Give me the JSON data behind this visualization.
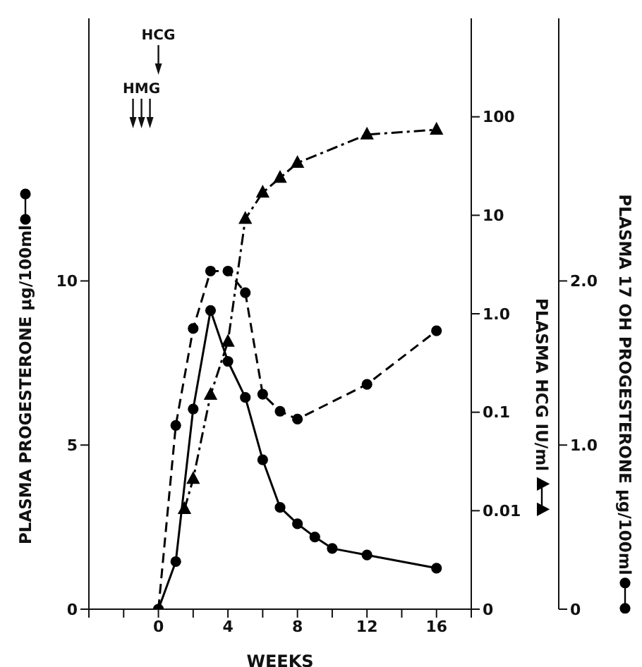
{
  "chart_data": {
    "type": "line",
    "xlabel": "WEEKS",
    "ylabel": "PLASMA PROGESTERONE µg/100ml",
    "y2label": "PLASMA HCG IU/ml",
    "y3label": "PLASMA 17 OH PROGESTERONE µg/100ml",
    "xlim": [
      -4,
      18
    ],
    "xticks": [
      {
        "value": -4,
        "label": null
      },
      {
        "value": -2,
        "label": null
      },
      0,
      {
        "value": 2,
        "label": null
      },
      4,
      {
        "value": 6,
        "label": null
      },
      8,
      {
        "value": 10,
        "label": null
      },
      12,
      {
        "value": 14,
        "label": null
      },
      16,
      {
        "value": 18,
        "label": null
      }
    ],
    "ylim": [
      0,
      18
    ],
    "yticks": [
      0,
      5,
      10
    ],
    "y2lim": [
      0.001,
      1000
    ],
    "y2ticks": [
      {
        "value": 0.001,
        "label": "0"
      },
      0.01,
      0.1,
      {
        "value": 1,
        "label": "1.0"
      },
      10,
      100
    ],
    "log": "y2",
    "y3lim": [
      0,
      3.6
    ],
    "y3ticks": [
      0,
      {
        "value": 1,
        "label": "1.0"
      },
      {
        "value": 2,
        "label": "2.0"
      }
    ],
    "annotations": [
      "HCG",
      "HMG"
    ],
    "series": [
      {
        "axis": "y",
        "color": "#000000",
        "marker": "circle",
        "line_style": "dashed",
        "x": [
          0,
          1,
          2,
          3,
          4,
          5,
          6,
          7,
          8,
          12,
          16
        ],
        "values": [
          0,
          5.6,
          8.55,
          10.3,
          10.3,
          9.64,
          6.55,
          6.03,
          5.79,
          6.85,
          8.48
        ]
      },
      {
        "axis": "y2",
        "color": "#000000",
        "marker": "triangle",
        "line_style": "dashdot",
        "x": [
          1.5,
          2,
          3,
          4,
          5,
          6,
          7,
          8,
          12,
          16
        ],
        "values": [
          0.0104,
          0.021,
          0.15,
          0.52,
          9.2,
          17,
          24,
          34,
          66,
          74
        ]
      },
      {
        "axis": "y3",
        "color": "#000000",
        "marker": "circle",
        "line_style": "solid",
        "x": [
          0,
          1,
          2,
          3,
          4,
          5,
          6,
          7,
          8,
          9,
          10,
          12,
          16
        ],
        "values": [
          0,
          0.29,
          1.22,
          1.82,
          1.51,
          1.29,
          0.91,
          0.62,
          0.52,
          0.44,
          0.37,
          0.33,
          0.25
        ]
      }
    ]
  }
}
